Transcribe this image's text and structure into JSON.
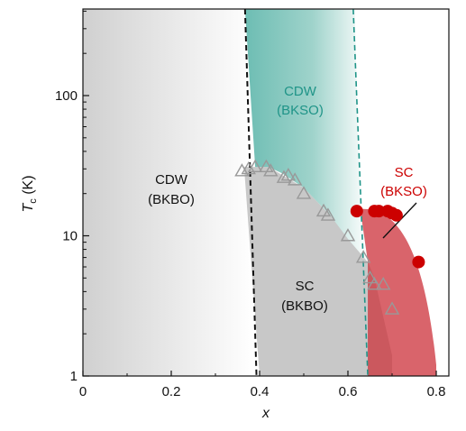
{
  "chart_data": {
    "type": "scatter",
    "xlabel": "x",
    "ylabel_main": "T",
    "ylabel_sub": "c",
    "ylabel_unit": " (K)",
    "xlim": [
      0,
      0.83
    ],
    "ylim": [
      1,
      400
    ],
    "y_scale": "log",
    "x_ticks": [
      0,
      0.2,
      0.4,
      0.6,
      0.8
    ],
    "x_tick_labels": [
      "0",
      "0.2",
      "0.4",
      "0.6",
      "0.8"
    ],
    "y_ticks": [
      1,
      10,
      100
    ],
    "y_tick_labels": [
      "1",
      "10",
      "100"
    ],
    "grid": false,
    "colors": {
      "bksbo_gray": "#c8c8c8",
      "bkso_teal": "#78c2b9",
      "sc_bkso_red": "#d9646b",
      "marker_red": "#cc0000",
      "teal_text": "#1f9488",
      "red_text": "#cc0000"
    },
    "regions": [
      {
        "id": "cdw-bkbo",
        "line1": "CDW",
        "line2": "(BKBO)"
      },
      {
        "id": "cdw-bkso",
        "line1": "CDW",
        "line2": "(BKSO)"
      },
      {
        "id": "sc-bkbo",
        "line1": "SC",
        "line2": "(BKBO)"
      },
      {
        "id": "sc-bkso",
        "line1": "SC",
        "line2": "(BKSO)"
      }
    ],
    "series": [
      {
        "marker": "open-triangle",
        "color": "#999999",
        "x": [
          0.36,
          0.375,
          0.39,
          0.415,
          0.425,
          0.455,
          0.465,
          0.48,
          0.5,
          0.545,
          0.555,
          0.6,
          0.635,
          0.65,
          0.66,
          0.68,
          0.7
        ],
        "y": [
          29,
          30,
          31,
          31,
          29,
          26,
          27,
          25,
          20,
          15,
          14,
          10,
          7,
          5,
          4.5,
          4.5,
          3
        ]
      },
      {
        "marker": "filled-circle",
        "color": "#cc0000",
        "x": [
          0.62,
          0.66,
          0.67,
          0.69,
          0.7,
          0.71,
          0.76
        ],
        "y": [
          15,
          15,
          15,
          15,
          14.5,
          14,
          6.5
        ]
      }
    ]
  }
}
